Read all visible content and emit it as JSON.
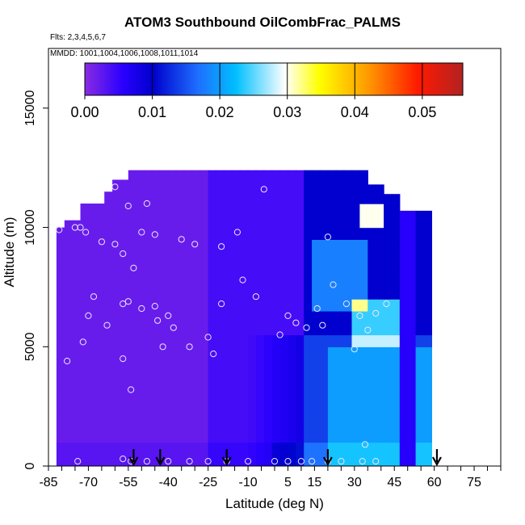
{
  "chart_data": {
    "type": "heatmap",
    "title": "ATOM3 Southbound OilCombFrac_PALMS",
    "subtitle": "Flts: 2,3,4,5,6,7",
    "annotation": "MMDD: 1001,1004,1006,1008,1011,1014",
    "xlabel": "Latitude (deg N)",
    "ylabel": "Altitude (m)",
    "xlim": [
      -85,
      85
    ],
    "ylim": [
      0,
      17500
    ],
    "x_ticks_labeled": [
      -85,
      -70,
      -55,
      -40,
      -25,
      -10,
      5,
      15,
      30,
      45,
      60,
      75
    ],
    "x_ticks_minor_step": 5,
    "y_ticks": [
      0,
      5000,
      10000,
      15000
    ],
    "colorbar": {
      "ticks": [
        0.0,
        0.01,
        0.02,
        0.03,
        0.04,
        0.05
      ],
      "tick_labels": [
        "0.00",
        "0.01",
        "0.02",
        "0.03",
        "0.04",
        "0.05"
      ],
      "range": [
        0.0,
        0.056
      ],
      "colors": [
        "#8a2be2",
        "#0000cd",
        "#1e90ff",
        "#00bfff",
        "#ffffff",
        "#ffff00",
        "#ff8c00",
        "#ff0000",
        "#b22222"
      ]
    },
    "flight_latitude_markers": [
      -53,
      -43,
      -18,
      20,
      61
    ],
    "data_coverage": {
      "latitude_range": [
        -82,
        57
      ],
      "altitude_range": [
        0,
        12500
      ]
    },
    "field_description_cells": [
      {
        "lat_range": [
          -82,
          -20
        ],
        "alt_range": [
          0,
          12000
        ],
        "value": 0.003
      },
      {
        "lat_range": [
          -20,
          10
        ],
        "alt_range": [
          0,
          12000
        ],
        "value": 0.006
      },
      {
        "lat_range": [
          10,
          57
        ],
        "alt_range": [
          0,
          12000
        ],
        "value": 0.012
      },
      {
        "lat_range": [
          30,
          45
        ],
        "alt_range": [
          5000,
          7000
        ],
        "value": 0.025
      },
      {
        "lat_range": [
          33,
          38
        ],
        "alt_range": [
          10000,
          11000
        ],
        "value": 0.035
      }
    ],
    "observation_points": [
      [
        -81,
        9900
      ],
      [
        -75,
        10000
      ],
      [
        -73,
        10000
      ],
      [
        -71,
        9800
      ],
      [
        -65,
        9400
      ],
      [
        -60,
        9300
      ],
      [
        -57,
        8900
      ],
      [
        -53,
        8300
      ],
      [
        -50,
        9800
      ],
      [
        -45,
        9700
      ],
      [
        -35,
        9500
      ],
      [
        -30,
        9300
      ],
      [
        -20,
        9200
      ],
      [
        -14,
        9800
      ],
      [
        -4,
        11600
      ],
      [
        20,
        9600
      ],
      [
        -60,
        11700
      ],
      [
        -55,
        10900
      ],
      [
        -48,
        11000
      ],
      [
        -70,
        6300
      ],
      [
        -68,
        7100
      ],
      [
        -72,
        5200
      ],
      [
        -63,
        5900
      ],
      [
        -57,
        6800
      ],
      [
        -55,
        6900
      ],
      [
        -50,
        6600
      ],
      [
        -45,
        6700
      ],
      [
        -40,
        6300
      ],
      [
        -44,
        6100
      ],
      [
        -42,
        5000
      ],
      [
        -38,
        5800
      ],
      [
        -32,
        5000
      ],
      [
        -25,
        5400
      ],
      [
        -23,
        4700
      ],
      [
        -20,
        6800
      ],
      [
        -12,
        7800
      ],
      [
        -7,
        7100
      ],
      [
        2,
        5500
      ],
      [
        5,
        6300
      ],
      [
        8,
        6000
      ],
      [
        12,
        5800
      ],
      [
        16,
        6600
      ],
      [
        18,
        5900
      ],
      [
        22,
        7600
      ],
      [
        27,
        6800
      ],
      [
        30,
        4900
      ],
      [
        32,
        6300
      ],
      [
        35,
        5700
      ],
      [
        38,
        6400
      ],
      [
        42,
        6800
      ],
      [
        -78,
        4400
      ],
      [
        -57,
        4500
      ],
      [
        -54,
        3200
      ],
      [
        -74,
        200
      ],
      [
        -57,
        300
      ],
      [
        -54,
        200
      ],
      [
        -48,
        200
      ],
      [
        -40,
        200
      ],
      [
        -32,
        200
      ],
      [
        -25,
        200
      ],
      [
        -18,
        200
      ],
      [
        -10,
        200
      ],
      [
        0,
        200
      ],
      [
        5,
        200
      ],
      [
        10,
        200
      ],
      [
        14,
        200
      ],
      [
        20,
        200
      ],
      [
        25,
        200
      ],
      [
        33,
        200
      ],
      [
        34,
        900
      ],
      [
        38,
        200
      ]
    ],
    "grid": false
  }
}
